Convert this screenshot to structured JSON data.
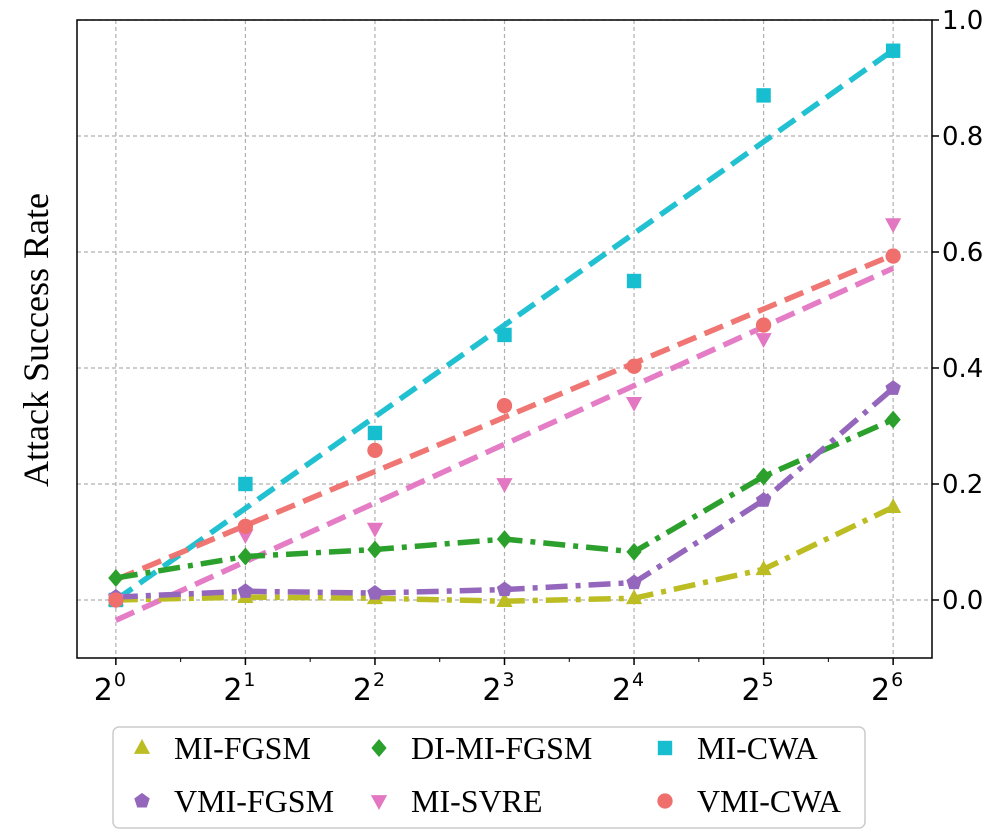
{
  "chart_data": {
    "type": "line",
    "title": "",
    "ylabel": "Attack Success Rate",
    "xlabel": "",
    "x": [
      0,
      1,
      2,
      3,
      4,
      5,
      6
    ],
    "x_tick_labels": [
      {
        "base": "2",
        "exp": "0"
      },
      {
        "base": "2",
        "exp": "1"
      },
      {
        "base": "2",
        "exp": "2"
      },
      {
        "base": "2",
        "exp": "3"
      },
      {
        "base": "2",
        "exp": "4"
      },
      {
        "base": "2",
        "exp": "5"
      },
      {
        "base": "2",
        "exp": "6"
      }
    ],
    "y_ticks": [
      0.0,
      0.2,
      0.4,
      0.6,
      0.8,
      1.0
    ],
    "y_tick_labels": [
      "0.0",
      "0.2",
      "0.4",
      "0.6",
      "0.8",
      "1.0"
    ],
    "ylim": [
      -0.1,
      1.0
    ],
    "xlim": [
      -0.3,
      6.3
    ],
    "y_axis_side": "right",
    "grid": true,
    "legend_position": "bottom",
    "series": [
      {
        "name": "MI-FGSM",
        "color": "#bcbd22",
        "marker": "triangle-up",
        "line": "dashdot",
        "values": [
          0.0,
          0.005,
          0.003,
          -0.002,
          0.003,
          0.053,
          0.16
        ]
      },
      {
        "name": "DI-MI-FGSM",
        "color": "#2ca02c",
        "marker": "diamond",
        "line": "dashdot",
        "values": [
          0.038,
          0.075,
          0.087,
          0.105,
          0.083,
          0.213,
          0.311
        ]
      },
      {
        "name": "MI-CWA",
        "color": "#17becf",
        "marker": "square",
        "line": "none",
        "values": [
          0.0,
          0.2,
          0.288,
          0.457,
          0.55,
          0.87,
          0.947
        ],
        "trend": [
          0.0,
          0.948
        ]
      },
      {
        "name": "VMI-FGSM",
        "color": "#9467bd",
        "marker": "pentagon",
        "line": "dashdot",
        "values": [
          0.005,
          0.015,
          0.012,
          0.018,
          0.03,
          0.172,
          0.365
        ]
      },
      {
        "name": "MI-SVRE",
        "color": "#e377c2",
        "marker": "triangle-down",
        "line": "none",
        "values": [
          0.0,
          0.112,
          0.123,
          0.2,
          0.34,
          0.45,
          0.648
        ],
        "trend": [
          -0.035,
          0.572
        ]
      },
      {
        "name": "VMI-CWA",
        "color": "#ef6f6c",
        "marker": "circle",
        "line": "none",
        "values": [
          0.0,
          0.127,
          0.258,
          0.335,
          0.403,
          0.474,
          0.593
        ],
        "trend": [
          0.035,
          0.595
        ]
      }
    ]
  }
}
